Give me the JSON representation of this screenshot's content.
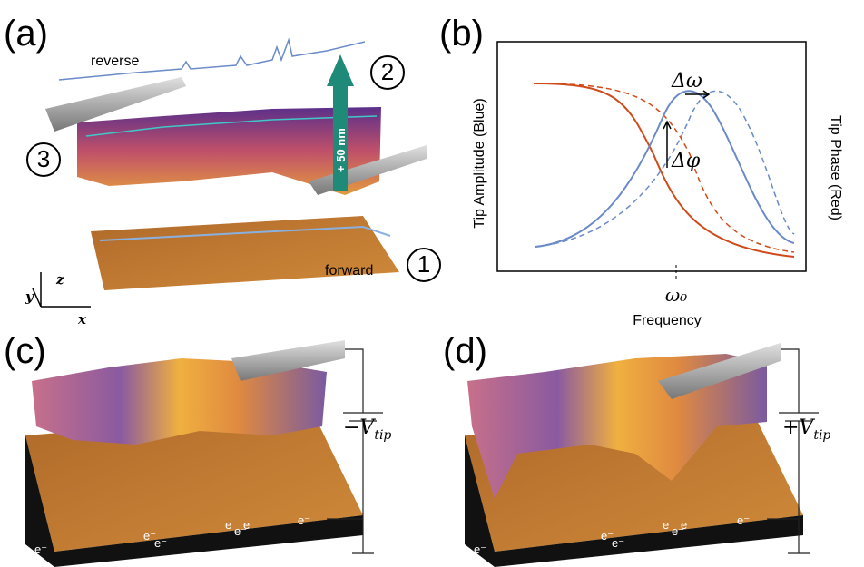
{
  "panel_a": {
    "label": "(a)",
    "reverse": "reverse",
    "forward": "forward",
    "height": "+ 50 nm",
    "steps": [
      "1",
      "2",
      "3"
    ],
    "axes": [
      "x",
      "y",
      "z"
    ]
  },
  "panel_b": {
    "label": "(b)",
    "y_left": "Tip Amplitude (Blue)",
    "y_right": "Tip Phase (Red)",
    "delta_omega": "Δω",
    "delta_phi": "Δφ",
    "omega0": "ω₀",
    "x_label": "Frequency"
  },
  "panel_c": {
    "label": "(c)",
    "voltage": {
      "symbol": "−V",
      "subscript": "tip"
    },
    "electrons": [
      "e⁻",
      "e⁻",
      "e⁻",
      "e⁻",
      "e⁻",
      "e⁻",
      "e⁻"
    ]
  },
  "panel_d": {
    "label": "(d)",
    "voltage": {
      "symbol": "+V",
      "subscript": "tip"
    },
    "electrons": [
      "e⁻",
      "e⁻",
      "e⁻",
      "e⁻",
      "e⁻",
      "e⁻",
      "e⁻"
    ]
  }
}
